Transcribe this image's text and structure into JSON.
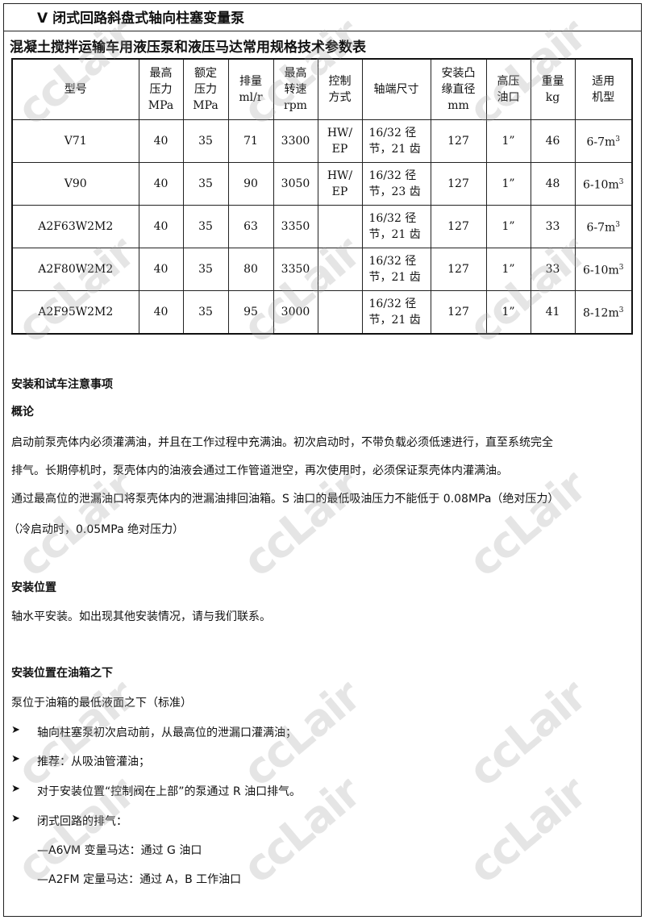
{
  "header": {
    "title": "V 闭式回路斜盘式轴向柱塞变量泵"
  },
  "table": {
    "title": "混凝土搅拌运输车用液压泵和液压马达常用规格技术参数表",
    "headers": [
      "型号",
      "最高\n压力\nMPa",
      "额定\n压力\nMPa",
      "排量\nml/r",
      "最高\n转速\nrpm",
      "控制\n方式",
      "轴端尺寸",
      "安装凸\n缘直径\nmm",
      "高压\n油口",
      "重量\nkg",
      "适用\n机型"
    ],
    "rows": [
      {
        "model": "V71",
        "max_p": "40",
        "rated_p": "35",
        "disp": "71",
        "speed": "3300",
        "ctrl": "HW/\nEP",
        "shaft": "16/32  径\n节，21 齿",
        "flange": "127",
        "port": "1”",
        "weight": "46",
        "app": "6-7m",
        "app_sup": "3"
      },
      {
        "model": "V90",
        "max_p": "40",
        "rated_p": "35",
        "disp": "90",
        "speed": "3050",
        "ctrl": "HW/\nEP",
        "shaft": "16/32  径\n节，23 齿",
        "flange": "127",
        "port": "1”",
        "weight": "48",
        "app": "6-10m",
        "app_sup": "3"
      },
      {
        "model": "A2F63W2M2",
        "max_p": "40",
        "rated_p": "35",
        "disp": "63",
        "speed": "3350",
        "ctrl": "",
        "shaft": "16/32 径\n节，21 齿",
        "flange": "127",
        "port": "1”",
        "weight": "33",
        "app": "6-7m",
        "app_sup": "3"
      },
      {
        "model": "A2F80W2M2",
        "max_p": "40",
        "rated_p": "35",
        "disp": "80",
        "speed": "3350",
        "ctrl": "",
        "shaft": "16/32 径\n节，21 齿",
        "flange": "127",
        "port": "1”",
        "weight": "33",
        "app": "6-10m",
        "app_sup": "3"
      },
      {
        "model": "A2F95W2M2",
        "max_p": "40",
        "rated_p": "35",
        "disp": "95",
        "speed": "3000",
        "ctrl": "",
        "shaft": "16/32 径\n节，21 齿",
        "flange": "127",
        "port": "1”",
        "weight": "41",
        "app": "8-12m",
        "app_sup": "3"
      }
    ]
  },
  "body": {
    "h1": "安装和试车注意事项",
    "h2": "概论",
    "p1a": "启动前泵壳体内必须灌满油，并且在工作过程中充满油。初次启动时，不带负载必须低速进行，直至系统完全",
    "p1b": "排气。长期停机时，泵壳体内的油液会通过工作管道泄空，再次使用时，必须保证泵壳体内灌满油。",
    "p2a": "通过最高位的泄漏油口将泵壳体内的泄漏油排回油箱。S 油口的最低吸油压力不能低于 0.08MPa（绝对压力）",
    "p2b": "（冷启动时，0.05MPa 绝对压力）",
    "h3": "安装位置",
    "p3": "轴水平安装。如出现其他安装情况，请与我们联系。",
    "h4": "安装位置在油箱之下",
    "p4": "泵位于油箱的最低液面之下（标准）",
    "bullets": [
      "轴向柱塞泵初次启动前，从最高位的泄漏口灌满油；",
      "推荐：从吸油管灌油；",
      "对于安装位置“控制阀在上部”的泵通过 R 油口排气。",
      "闭式回路的排气："
    ],
    "bullet_icon": "arrowhead-bullet",
    "sub1": "—A6VM 变量马达：通过 G 油口",
    "sub2": "—A2FM 定量马达：通过 A，B 工作油口"
  },
  "watermark": "ccLair"
}
